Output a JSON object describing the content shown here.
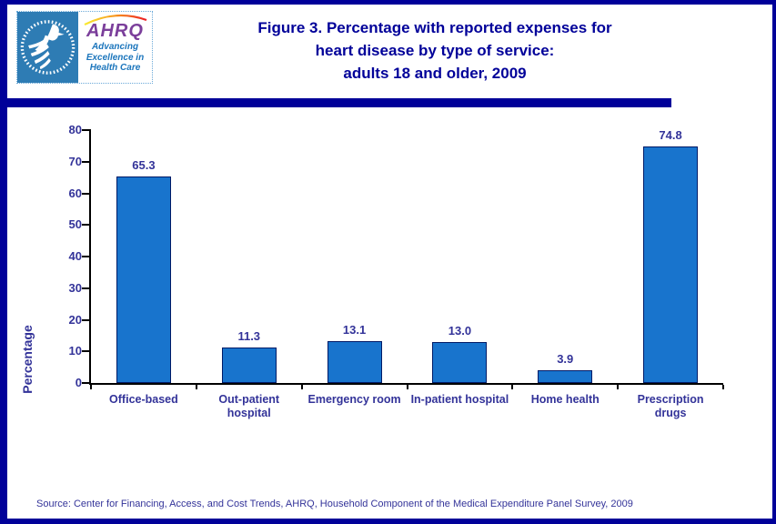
{
  "header": {
    "logo": {
      "acronym": "AHRQ",
      "tagline_lines": [
        "Advancing",
        "Excellence in",
        "Health Care"
      ],
      "seal_icon": "hhs-eagle-seal-icon",
      "arc_icon": "rainbow-arc-icon"
    },
    "title_lines": [
      "Figure 3. Percentage with reported expenses for",
      "heart disease by type of service:",
      "adults 18 and older, 2009"
    ]
  },
  "chart_data": {
    "type": "bar",
    "title": "Figure 3. Percentage with reported expenses for heart disease by type of service: adults 18 and older, 2009",
    "categories": [
      "Office-based",
      "Out-patient hospital",
      "Emergency room",
      "In-patient hospital",
      "Home health",
      "Prescription drugs"
    ],
    "categories_wrapped": [
      [
        "Office-based"
      ],
      [
        "Out-patient",
        "hospital"
      ],
      [
        "Emergency room"
      ],
      [
        "In-patient hospital"
      ],
      [
        "Home health"
      ],
      [
        "Prescription",
        "drugs"
      ]
    ],
    "values": [
      65.3,
      11.3,
      13.1,
      13.0,
      3.9,
      74.8
    ],
    "data_labels": [
      "65.3",
      "11.3",
      "13.1",
      "13.0",
      "3.9",
      "74.8"
    ],
    "xlabel": "",
    "ylabel": "Percentage",
    "ylim": [
      0,
      80
    ],
    "ytick_interval": 10,
    "grid": false,
    "legend": "none",
    "bar_color": "#1874CD",
    "bar_border_color": "#001a66"
  },
  "footer": {
    "source": "Source: Center for Financing, Access, and Cost Trends, AHRQ, Household Component of the Medical Expenditure Panel Survey,  2009"
  },
  "colors": {
    "frame": "#000099",
    "title_text": "#000099",
    "label_text": "#333399",
    "axis": "#000000",
    "logo_teal": "#2E7CB4",
    "logo_purple": "#7B3F9B",
    "logo_blue": "#1B75BC"
  }
}
